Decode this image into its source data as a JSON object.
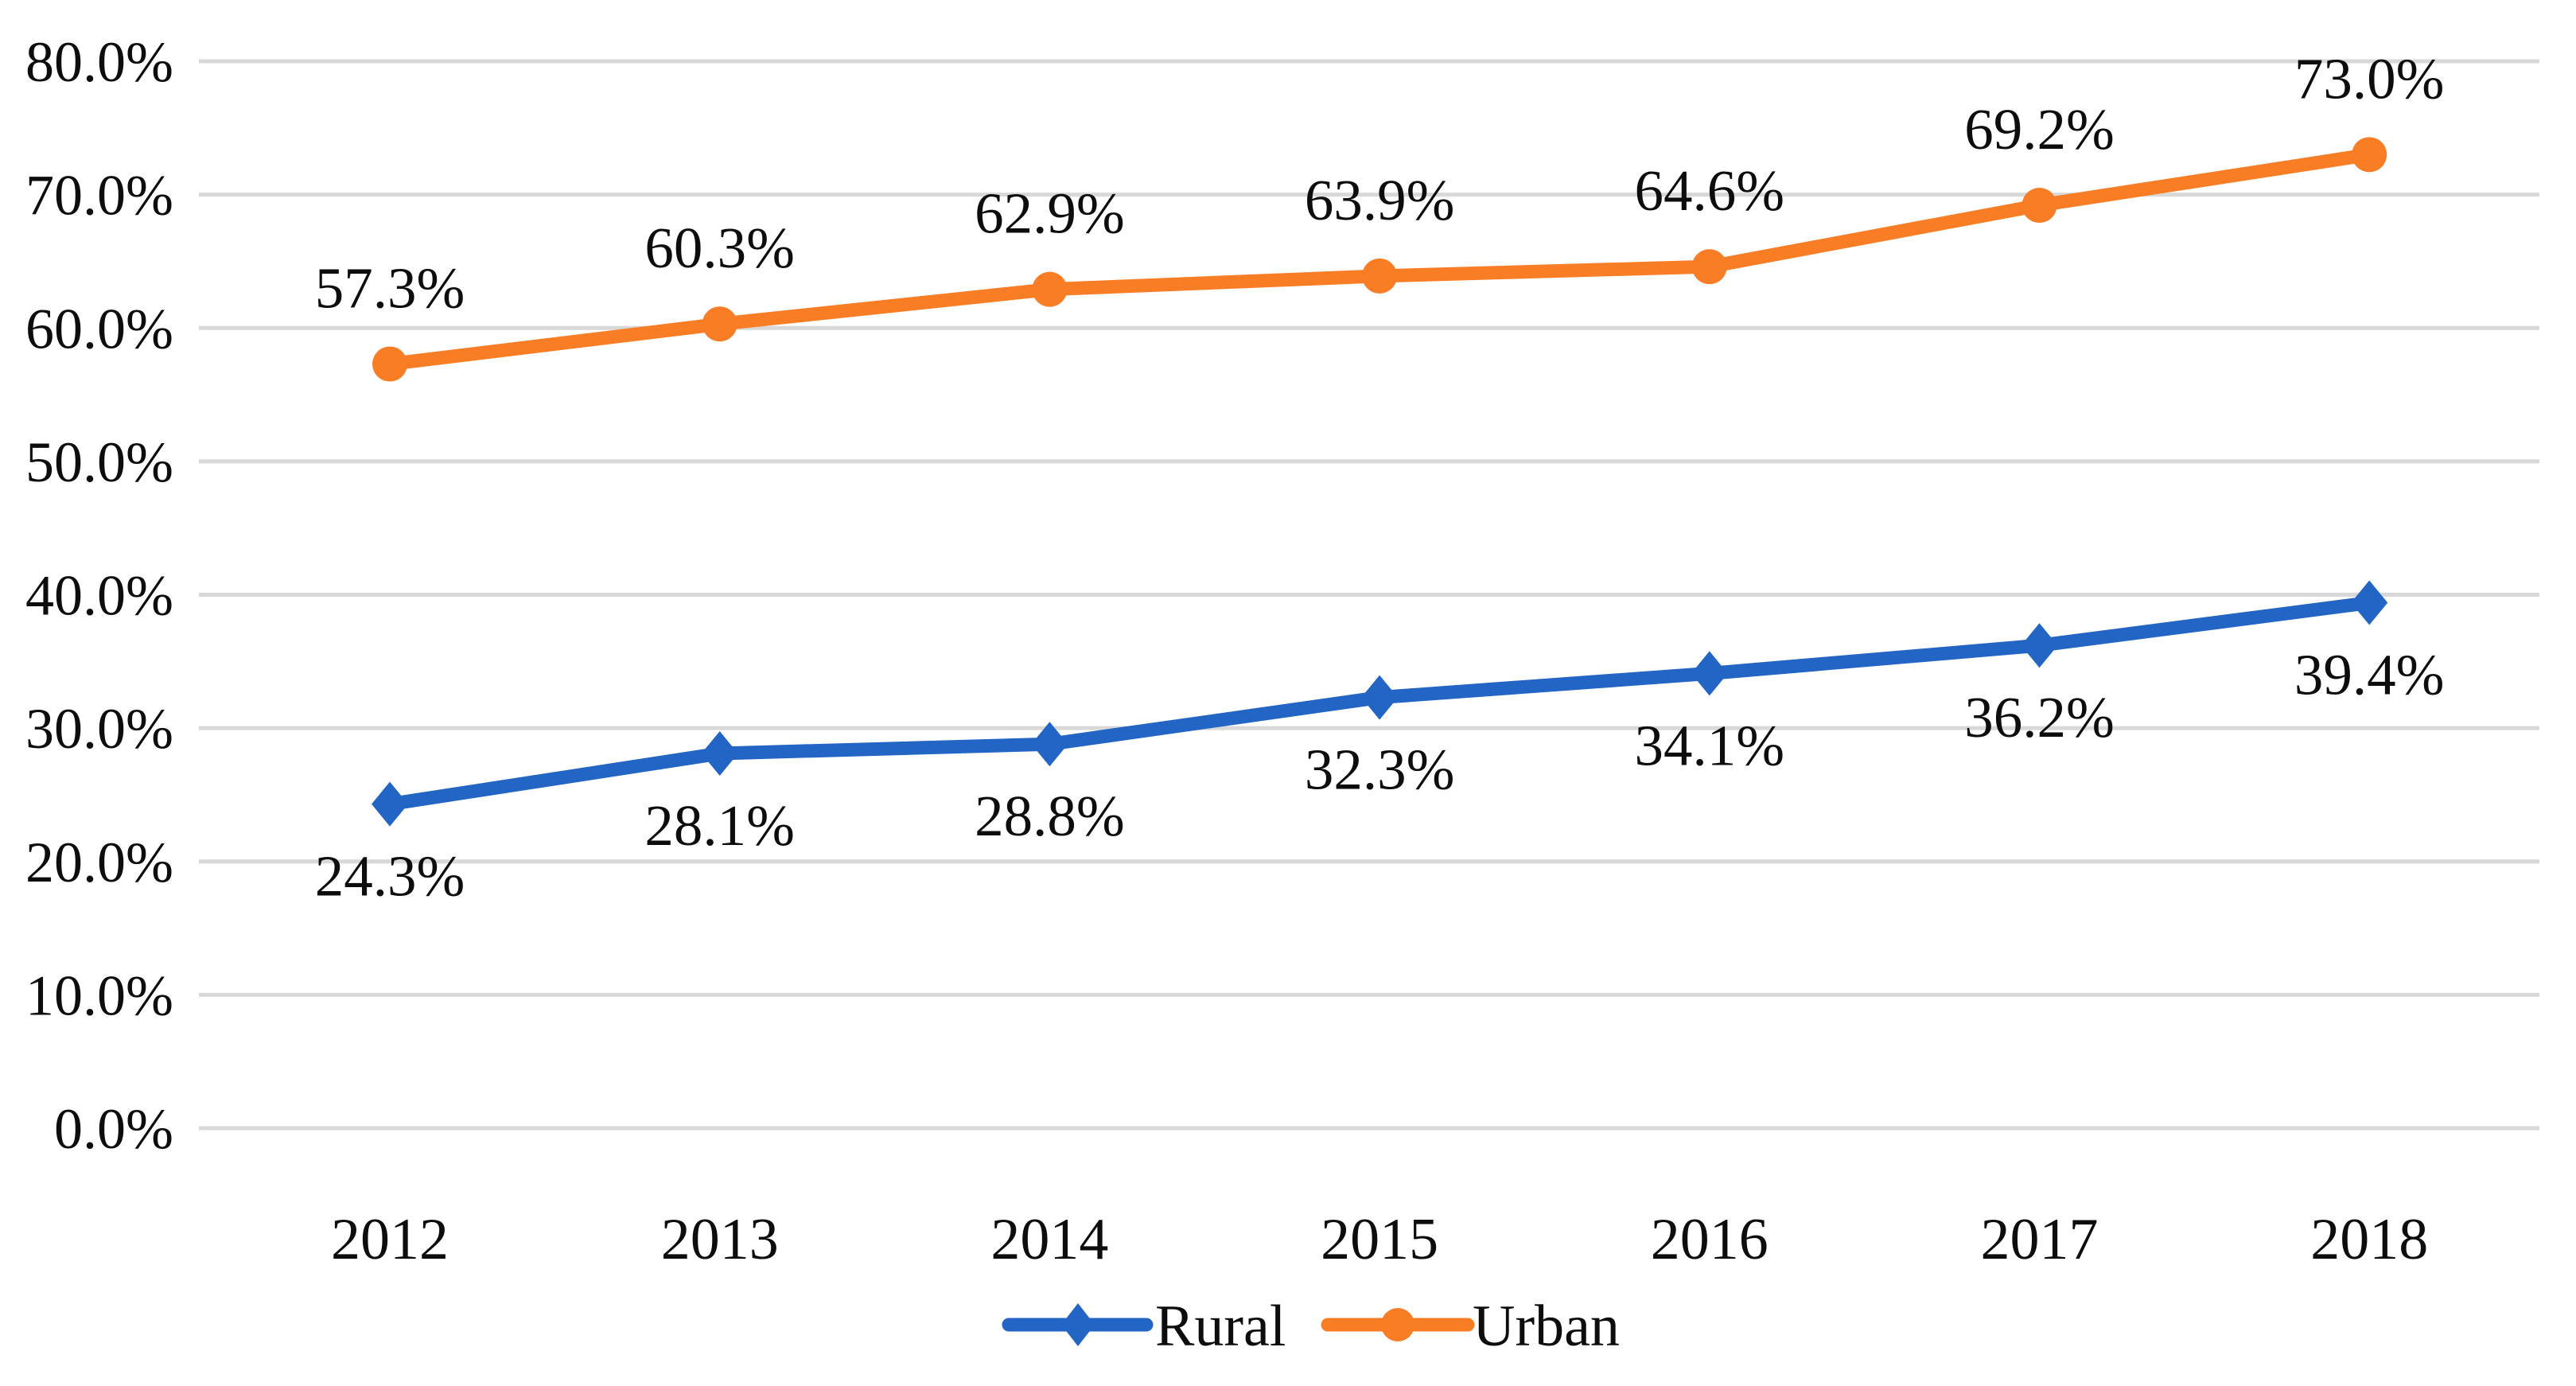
{
  "chart_data": {
    "type": "line",
    "title": "",
    "xlabel": "",
    "ylabel": "",
    "categories": [
      "2012",
      "2013",
      "2014",
      "2015",
      "2016",
      "2017",
      "2018"
    ],
    "series": [
      {
        "name": "Rural",
        "color": "#2265C4",
        "marker": "diamond",
        "label_position": "below",
        "values": [
          24.3,
          28.1,
          28.8,
          32.3,
          34.1,
          36.2,
          39.4
        ],
        "labels": [
          "24.3%",
          "28.1%",
          "28.8%",
          "32.3%",
          "34.1%",
          "36.2%",
          "39.4%"
        ]
      },
      {
        "name": "Urban",
        "color": "#F87D24",
        "marker": "circle",
        "label_position": "above",
        "values": [
          57.3,
          60.3,
          62.9,
          63.9,
          64.6,
          69.2,
          73.0
        ],
        "labels": [
          "57.3%",
          "60.3%",
          "62.9%",
          "63.9%",
          "64.6%",
          "69.2%",
          "73.0%"
        ]
      }
    ],
    "ylim": [
      0,
      80
    ],
    "y_tick_step": 10,
    "y_ticks": [
      "0.0%",
      "10.0%",
      "20.0%",
      "30.0%",
      "40.0%",
      "50.0%",
      "60.0%",
      "70.0%",
      "80.0%"
    ],
    "grid": true,
    "legend_position": "bottom",
    "legend": [
      "Rural",
      "Urban"
    ],
    "colors": {
      "gridline": "#D8D8D8",
      "text": "#0D0D0D",
      "background": "#FFFFFF"
    }
  }
}
